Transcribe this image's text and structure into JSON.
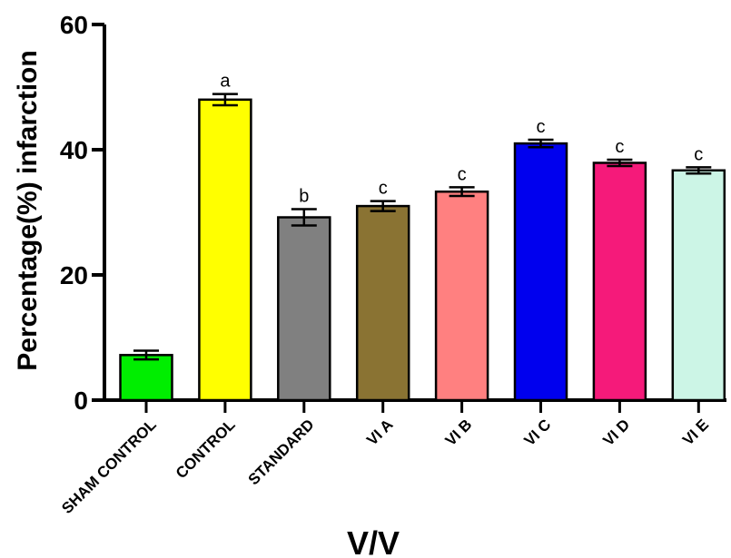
{
  "chart_data": {
    "type": "bar",
    "title": "",
    "xlabel": "V/V",
    "ylabel": "Percentage(%) infarction",
    "ylim": [
      0,
      60
    ],
    "yticks": [
      0,
      20,
      40,
      60
    ],
    "grid": false,
    "legend": "none",
    "categories": [
      "SHAM CONTROL",
      "CONTROL",
      "STANDARD",
      "VI A",
      "VI B",
      "VI C",
      "VI D",
      "VI E"
    ],
    "values": [
      7.2,
      48.0,
      29.2,
      31.0,
      33.3,
      41.0,
      37.9,
      36.7
    ],
    "errors": [
      0.7,
      0.9,
      1.3,
      0.8,
      0.7,
      0.6,
      0.5,
      0.5
    ],
    "significance": [
      "",
      "a",
      "b",
      "c",
      "c",
      "c",
      "c",
      "c"
    ],
    "colors": [
      "#00ee00",
      "#ffff00",
      "#808080",
      "#8a7333",
      "#ff8080",
      "#0000ee",
      "#f51a7a",
      "#ccf5e6"
    ]
  }
}
